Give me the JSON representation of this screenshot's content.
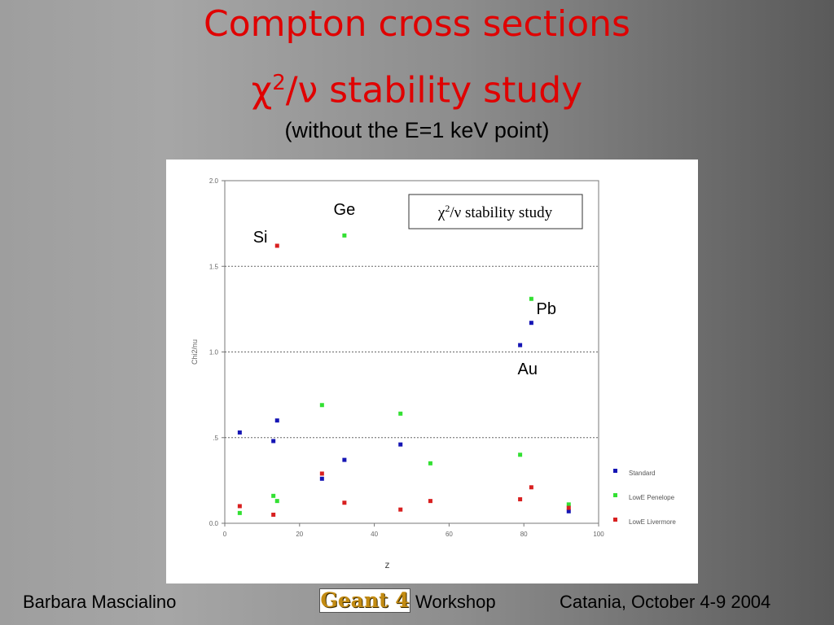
{
  "slide": {
    "title_line1": "Compton cross sections",
    "title_line2_suffix": "/ν stability study",
    "subtitle": "(without the E=1 keV point)"
  },
  "footer": {
    "author": "Barbara Mascialino",
    "logo_text": "Geant 4",
    "workshop": "Workshop",
    "event": "Catania, October 4-9 2004"
  },
  "chart_data": {
    "type": "scatter",
    "title": "",
    "inset_label": "/ν stability study",
    "xlabel": "z",
    "ylabel": "Chi2/nu",
    "xlim": [
      0,
      100
    ],
    "ylim": [
      0,
      2
    ],
    "xticks": [
      "0",
      "20",
      "40",
      "60",
      "80",
      "100"
    ],
    "yticks": [
      "0.0",
      ".5",
      "1.0",
      "1.5",
      "2.0"
    ],
    "grid": "horizontal dotted",
    "legend_position": "right",
    "annotations": [
      {
        "text": "Ge",
        "x": 32,
        "y": 1.8
      },
      {
        "text": "Si",
        "x": 9.5,
        "y": 1.64
      },
      {
        "text": "Pb",
        "x": 86,
        "y": 1.22
      },
      {
        "text": "Au",
        "x": 81,
        "y": 0.87
      }
    ],
    "series": [
      {
        "name": "Standard",
        "color": "#1515b4",
        "points": [
          [
            4,
            0.53
          ],
          [
            13,
            0.48
          ],
          [
            14,
            0.6
          ],
          [
            26,
            0.26
          ],
          [
            32,
            0.37
          ],
          [
            47,
            0.46
          ],
          [
            79,
            1.04
          ],
          [
            82,
            1.17
          ],
          [
            92,
            0.07
          ]
        ]
      },
      {
        "name": "LowE Penelope",
        "color": "#33e033",
        "points": [
          [
            4,
            0.06
          ],
          [
            13,
            0.16
          ],
          [
            14,
            0.13
          ],
          [
            26,
            0.69
          ],
          [
            32,
            1.68
          ],
          [
            47,
            0.64
          ],
          [
            55,
            0.35
          ],
          [
            79,
            0.4
          ],
          [
            82,
            1.31
          ],
          [
            92,
            0.11
          ]
        ]
      },
      {
        "name": "LowE Livermore",
        "color": "#d82020",
        "points": [
          [
            4,
            0.1
          ],
          [
            13,
            0.05
          ],
          [
            14,
            1.62
          ],
          [
            26,
            0.29
          ],
          [
            32,
            0.12
          ],
          [
            47,
            0.08
          ],
          [
            55,
            0.13
          ],
          [
            79,
            0.14
          ],
          [
            82,
            0.21
          ],
          [
            92,
            0.09
          ]
        ]
      }
    ]
  }
}
